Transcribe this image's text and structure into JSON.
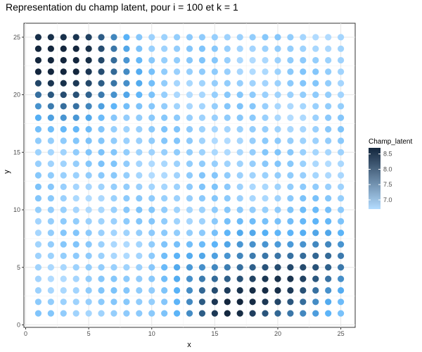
{
  "chart_data": {
    "type": "scatter",
    "title": "Representation du champ latent, pour i = 100 et k = 1",
    "xlabel": "x",
    "ylabel": "y",
    "x_ticks": [
      0,
      5,
      10,
      15,
      20,
      25
    ],
    "y_ticks": [
      0,
      5,
      10,
      15,
      20,
      25
    ],
    "xlim": [
      0,
      26
    ],
    "ylim": [
      0,
      26
    ],
    "grid": true,
    "legend": {
      "title": "Champ_latent",
      "position": "right",
      "labels": [
        "8.5",
        "8.0",
        "7.5",
        "7.0"
      ],
      "values": [
        8.5,
        8.0,
        7.5,
        7.0
      ],
      "range": [
        6.7,
        8.7
      ],
      "color_low": "#b3dcff",
      "color_high": "#13263d"
    },
    "grid_points": {
      "x_range": [
        1,
        25
      ],
      "y_range": [
        1,
        25
      ],
      "step": 1
    },
    "field_peaks": [
      {
        "x": 1,
        "y": 24,
        "peak": 8.6
      },
      {
        "x": 17,
        "y": 2,
        "peak": 8.7
      },
      {
        "x": 23,
        "y": 5,
        "peak": 8.1
      },
      {
        "x": 5,
        "y": 22,
        "peak": 7.9
      }
    ],
    "field_base": 6.9
  }
}
